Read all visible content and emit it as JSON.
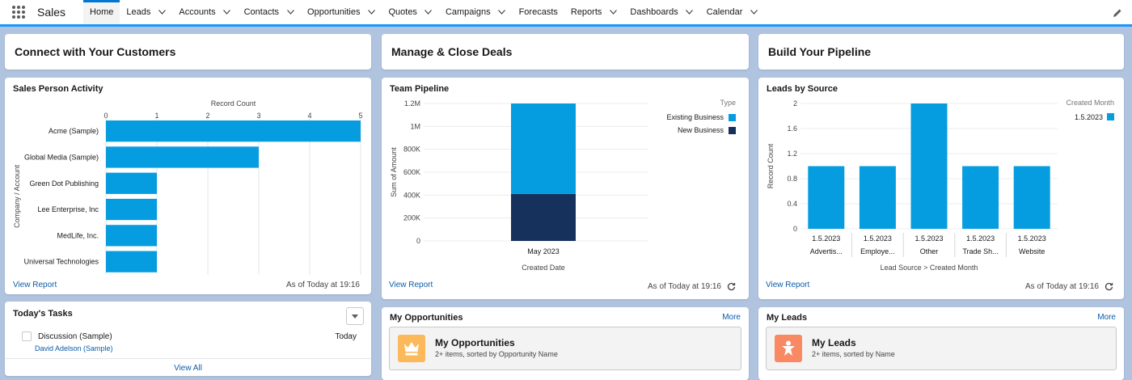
{
  "app": {
    "name": "Sales"
  },
  "nav": {
    "items": [
      {
        "label": "Home",
        "active": true,
        "dropdown": false
      },
      {
        "label": "Leads",
        "active": false,
        "dropdown": true
      },
      {
        "label": "Accounts",
        "active": false,
        "dropdown": true
      },
      {
        "label": "Contacts",
        "active": false,
        "dropdown": true
      },
      {
        "label": "Opportunities",
        "active": false,
        "dropdown": true
      },
      {
        "label": "Quotes",
        "active": false,
        "dropdown": true
      },
      {
        "label": "Campaigns",
        "active": false,
        "dropdown": true
      },
      {
        "label": "Forecasts",
        "active": false,
        "dropdown": false
      },
      {
        "label": "Reports",
        "active": false,
        "dropdown": true
      },
      {
        "label": "Dashboards",
        "active": false,
        "dropdown": true
      },
      {
        "label": "Calendar",
        "active": false,
        "dropdown": true
      }
    ]
  },
  "sections": {
    "connect": "Connect with Your Customers",
    "manage": "Manage & Close Deals",
    "build": "Build Your Pipeline"
  },
  "sales_activity": {
    "title": "Sales Person Activity",
    "view_report": "View Report",
    "as_of": "As of Today at 19:16"
  },
  "team_pipeline": {
    "title": "Team Pipeline",
    "view_report": "View Report",
    "as_of": "As of Today at 19:16"
  },
  "leads_source": {
    "title": "Leads by Source",
    "view_report": "View Report",
    "as_of": "As of Today at 19:16"
  },
  "tasks": {
    "title": "Today's Tasks",
    "items": [
      {
        "subject": "Discussion (Sample)",
        "who": "David Adelson (Sample)",
        "due": "Today"
      }
    ],
    "view_all": "View All"
  },
  "my_opps": {
    "title": "My Opportunities",
    "more": "More",
    "list_title": "My Opportunities",
    "list_sub": "2+ items, sorted by Opportunity Name"
  },
  "my_leads": {
    "title": "My Leads",
    "more": "More",
    "list_title": "My Leads",
    "list_sub": "2+ items, sorted by Name"
  },
  "colors": {
    "bar_blue": "#069de0",
    "bar_navy": "#16325c",
    "link": "#0b5cab",
    "opps_icon": "#fcb95b",
    "leads_icon": "#f88962"
  },
  "chart_data": [
    {
      "type": "bar",
      "orientation": "horizontal",
      "xlabel": "Record Count",
      "ylabel": "Company / Account",
      "xlim": [
        0,
        5
      ],
      "ticks": [
        "0",
        "1",
        "2",
        "3",
        "4",
        "5"
      ],
      "categories": [
        "Acme (Sample)",
        "Global Media (Sample)",
        "Green Dot Publishing",
        "Lee Enterprise, Inc",
        "MedLife, Inc.",
        "Universal Technologies"
      ],
      "values": [
        5,
        3,
        1,
        1,
        1,
        1
      ]
    },
    {
      "type": "bar",
      "stacked": true,
      "xlabel": "Created Date",
      "ylabel": "Sum of Amount",
      "legend_title": "Type",
      "ylim": [
        0,
        1200000
      ],
      "ticks": [
        "0",
        "200K",
        "400K",
        "600K",
        "800K",
        "1M",
        "1.2M"
      ],
      "categories": [
        "May 2023"
      ],
      "series": [
        {
          "name": "Existing Business",
          "values": [
            790000
          ]
        },
        {
          "name": "New Business",
          "values": [
            410000
          ]
        }
      ]
    },
    {
      "type": "bar",
      "xlabel": "Lead Source > Created Month",
      "ylabel": "Record Count",
      "legend_title": "Created Month",
      "ylim": [
        0,
        2
      ],
      "ticks": [
        "0",
        "0.4",
        "0.8",
        "1.2",
        "1.6",
        "2"
      ],
      "categories": [
        "Advertis...",
        "Employe...",
        "Other",
        "Trade Sh...",
        "Website"
      ],
      "sub_labels": [
        "1.5.2023",
        "1.5.2023",
        "1.5.2023",
        "1.5.2023",
        "1.5.2023"
      ],
      "series": [
        {
          "name": "1.5.2023",
          "values": [
            1,
            1,
            2,
            1,
            1
          ]
        }
      ]
    }
  ]
}
